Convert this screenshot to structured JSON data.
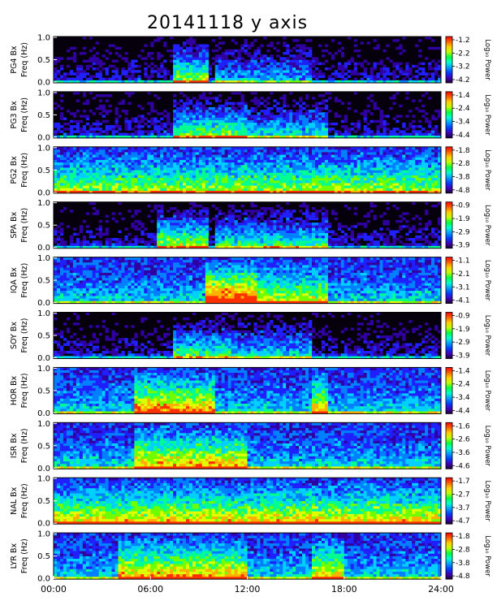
{
  "title": "20141118 y axis",
  "chart_data": {
    "type": "heatmap",
    "title": "20141118 y axis",
    "xlabel": "",
    "x_ticks": [
      "00:00",
      "06:00",
      "12:00",
      "18:00",
      "24:00"
    ],
    "xlim_hours": [
      0,
      24
    ],
    "ylim_hz": [
      0,
      1.0
    ],
    "y_ticks": [
      "0.0",
      "0.5",
      "1.0"
    ],
    "colorbar_label": "Log₁₀ Power",
    "panels": [
      {
        "station": "PG4",
        "ylabel_top": "PG4 Bx",
        "ylabel_bottom": "Freq (Hz)",
        "cbar_ticks": [
          "-1.2",
          "-2.2",
          "-3.2",
          "-4.2"
        ],
        "background": "dark",
        "activity": [
          [
            7.5,
            9.5,
            0.9
          ],
          [
            10,
            16,
            0.4
          ]
        ]
      },
      {
        "station": "PG3",
        "ylabel_top": "PG3 Bx",
        "ylabel_bottom": "Freq (Hz)",
        "cbar_ticks": [
          "-1.4",
          "-2.4",
          "-3.4",
          "-4.4"
        ],
        "background": "dark",
        "activity": [
          [
            7.5,
            12,
            0.8
          ],
          [
            12,
            17,
            0.5
          ]
        ]
      },
      {
        "station": "PG2",
        "ylabel_top": "PG2 Bx",
        "ylabel_bottom": "Freq (Hz)",
        "cbar_ticks": [
          "-1.8",
          "-2.8",
          "-3.8",
          "-4.8"
        ],
        "background": "blue",
        "activity": [
          [
            0,
            24,
            0.4
          ]
        ]
      },
      {
        "station": "SPA",
        "ylabel_top": "SPA Bx",
        "ylabel_bottom": "Freq (Hz)",
        "cbar_ticks": [
          "-0.9",
          "-1.9",
          "-2.9",
          "-3.9"
        ],
        "background": "dark",
        "activity": [
          [
            6.5,
            9.5,
            0.9
          ],
          [
            10,
            17,
            0.6
          ]
        ]
      },
      {
        "station": "IQA",
        "ylabel_top": "IQA Bx",
        "ylabel_bottom": "Freq (Hz)",
        "cbar_ticks": [
          "-1.1",
          "-2.1",
          "-3.1",
          "-4.1"
        ],
        "background": "blue",
        "activity": [
          [
            9.5,
            12.5,
            1.0
          ],
          [
            12.5,
            17,
            0.5
          ]
        ]
      },
      {
        "station": "SOY",
        "ylabel_top": "SOY Bx",
        "ylabel_bottom": "Freq (Hz)",
        "cbar_ticks": [
          "-0.9",
          "-1.9",
          "-2.9",
          "-3.9"
        ],
        "background": "dark",
        "activity": [
          [
            7.5,
            11,
            0.7
          ],
          [
            11,
            16,
            0.5
          ]
        ]
      },
      {
        "station": "HOR",
        "ylabel_top": "HOR Bx",
        "ylabel_bottom": "Freq (Hz)",
        "cbar_ticks": [
          "-1.4",
          "-2.4",
          "-3.4",
          "-4.4"
        ],
        "background": "blue",
        "activity": [
          [
            5,
            10,
            0.8
          ],
          [
            16,
            17,
            0.7
          ]
        ]
      },
      {
        "station": "ISR",
        "ylabel_top": "ISR Bx",
        "ylabel_bottom": "Freq (Hz)",
        "cbar_ticks": [
          "-1.6",
          "-2.6",
          "-3.6",
          "-4.6"
        ],
        "background": "blue",
        "activity": [
          [
            5,
            12,
            0.7
          ]
        ]
      },
      {
        "station": "NAL",
        "ylabel_top": "NAL Bx",
        "ylabel_bottom": "Freq (Hz)",
        "cbar_ticks": [
          "-1.7",
          "-2.7",
          "-3.7",
          "-4.7"
        ],
        "background": "blue",
        "activity": [
          [
            0,
            24,
            0.6
          ]
        ]
      },
      {
        "station": "LYR",
        "ylabel_top": "LYR Bx",
        "ylabel_bottom": "Freq (Hz)",
        "cbar_ticks": [
          "-1.8",
          "-2.8",
          "-3.8",
          "-4.8"
        ],
        "background": "blue",
        "activity": [
          [
            4,
            12,
            0.7
          ],
          [
            16,
            18,
            0.6
          ]
        ]
      }
    ]
  }
}
